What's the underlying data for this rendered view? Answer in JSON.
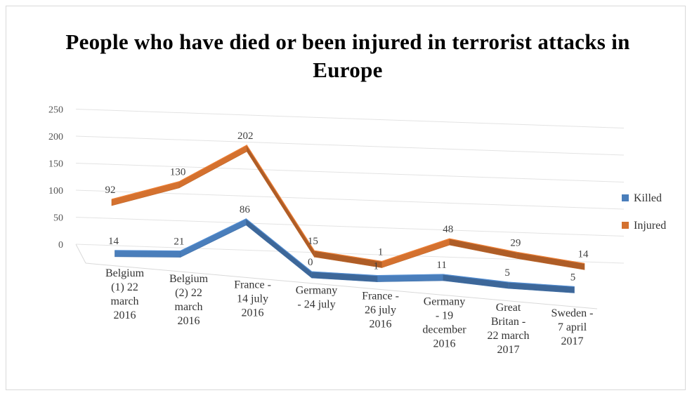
{
  "chart_data": {
    "type": "line",
    "title": "People who have died or been injured in terrorist attacks in Europe",
    "categories": [
      [
        "Belgium",
        "(1) 22",
        "march",
        "2016"
      ],
      [
        "Belgium",
        "(2) 22",
        "march",
        "2016"
      ],
      [
        "France -",
        "14 july",
        "2016"
      ],
      [
        "Germany",
        "- 24 july"
      ],
      [
        "France -",
        "26 july",
        "2016"
      ],
      [
        "Germany",
        "- 19",
        "december",
        "2016"
      ],
      [
        "Great",
        "Britan -",
        "22 march",
        "2017"
      ],
      [
        "Sweden -",
        "7 april",
        "2017"
      ]
    ],
    "series": [
      {
        "name": "Killed",
        "values": [
          14,
          21,
          86,
          0,
          1,
          11,
          5,
          5
        ],
        "color": "#4a7ebb"
      },
      {
        "name": "Injured",
        "values": [
          92,
          130,
          202,
          15,
          1,
          48,
          29,
          14
        ],
        "color": "#d4712f"
      }
    ],
    "ylim": [
      0,
      250
    ],
    "yticks": [
      0,
      50,
      100,
      150,
      200,
      250
    ],
    "grid": true,
    "legend": "right",
    "style": "3d-line"
  }
}
